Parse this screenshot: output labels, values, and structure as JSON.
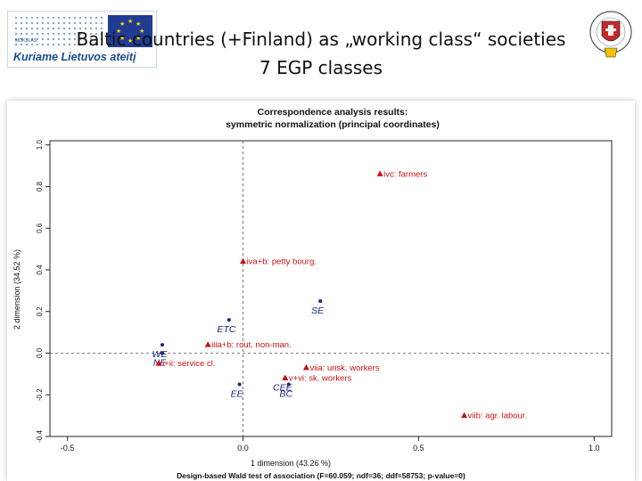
{
  "slide": {
    "title_line1": "Baltic countries (+Finland) as „working class“ societies",
    "title_line2": "7 EGP classes"
  },
  "logos": {
    "left_text": "Kuriame Lietuvos ateitį",
    "left_small": "MOKSLAS",
    "left_icon": "eu-flag-icon",
    "right_icon": "university-crest-icon"
  },
  "chart_data": {
    "type": "scatter",
    "title_line1": "Correspondence analysis results:",
    "title_line2": "symmetric normalization (principal coordinates)",
    "xlabel": "1 dimension (43.26 %)",
    "ylabel": "2 dimension (34.52 %)",
    "footer": "Design-based Wald test of association (F=60.059; ndf=36; ddf=58753; p-value=0)",
    "xlim": [
      -0.55,
      1.05
    ],
    "ylim": [
      -0.4,
      1.02
    ],
    "xticks": [
      -0.5,
      0.0,
      0.5,
      1.0
    ],
    "xtick_labels": [
      "-0.5",
      "0.0",
      "0.5",
      "1.0"
    ],
    "yticks": [
      -0.4,
      -0.2,
      0.0,
      0.2,
      0.4,
      0.6,
      0.8,
      1.0
    ],
    "ytick_labels": [
      "-0.4",
      "-0.2",
      "0.0",
      "0.2",
      "0.4",
      "0.6",
      "0.8",
      "1.0"
    ],
    "reference_lines": {
      "x": 0,
      "y": 0
    },
    "colors": {
      "countries": "#1a237e",
      "classes": "#cc1010"
    },
    "series": [
      {
        "name": "countries",
        "marker": "dot",
        "points": [
          {
            "label": "SE",
            "x": 0.22,
            "y": 0.25
          },
          {
            "label": "ETC",
            "x": -0.04,
            "y": 0.16
          },
          {
            "label": "WE",
            "x": -0.23,
            "y": 0.04
          },
          {
            "label": "NE",
            "x": -0.23,
            "y": 0.0
          },
          {
            "label": "CEE",
            "x": 0.12,
            "y": -0.12
          },
          {
            "label": "EE",
            "x": -0.01,
            "y": -0.15
          },
          {
            "label": "BC",
            "x": 0.13,
            "y": -0.15
          }
        ]
      },
      {
        "name": "classes",
        "marker": "triangle",
        "points": [
          {
            "label": "ivc: farmers",
            "x": 0.39,
            "y": 0.86
          },
          {
            "label": "iva+b: petty bourg.",
            "x": 0.0,
            "y": 0.44
          },
          {
            "label": "iiia+b: rout. non-man.",
            "x": -0.1,
            "y": 0.04
          },
          {
            "label": "i+ii: service cl.",
            "x": -0.24,
            "y": -0.05
          },
          {
            "label": "viia: unsk. workers",
            "x": 0.18,
            "y": -0.07
          },
          {
            "label": "v+vi: sk. workers",
            "x": 0.12,
            "y": -0.12
          },
          {
            "label": "viib: agr. labour.",
            "x": 0.63,
            "y": -0.3
          }
        ]
      }
    ]
  }
}
